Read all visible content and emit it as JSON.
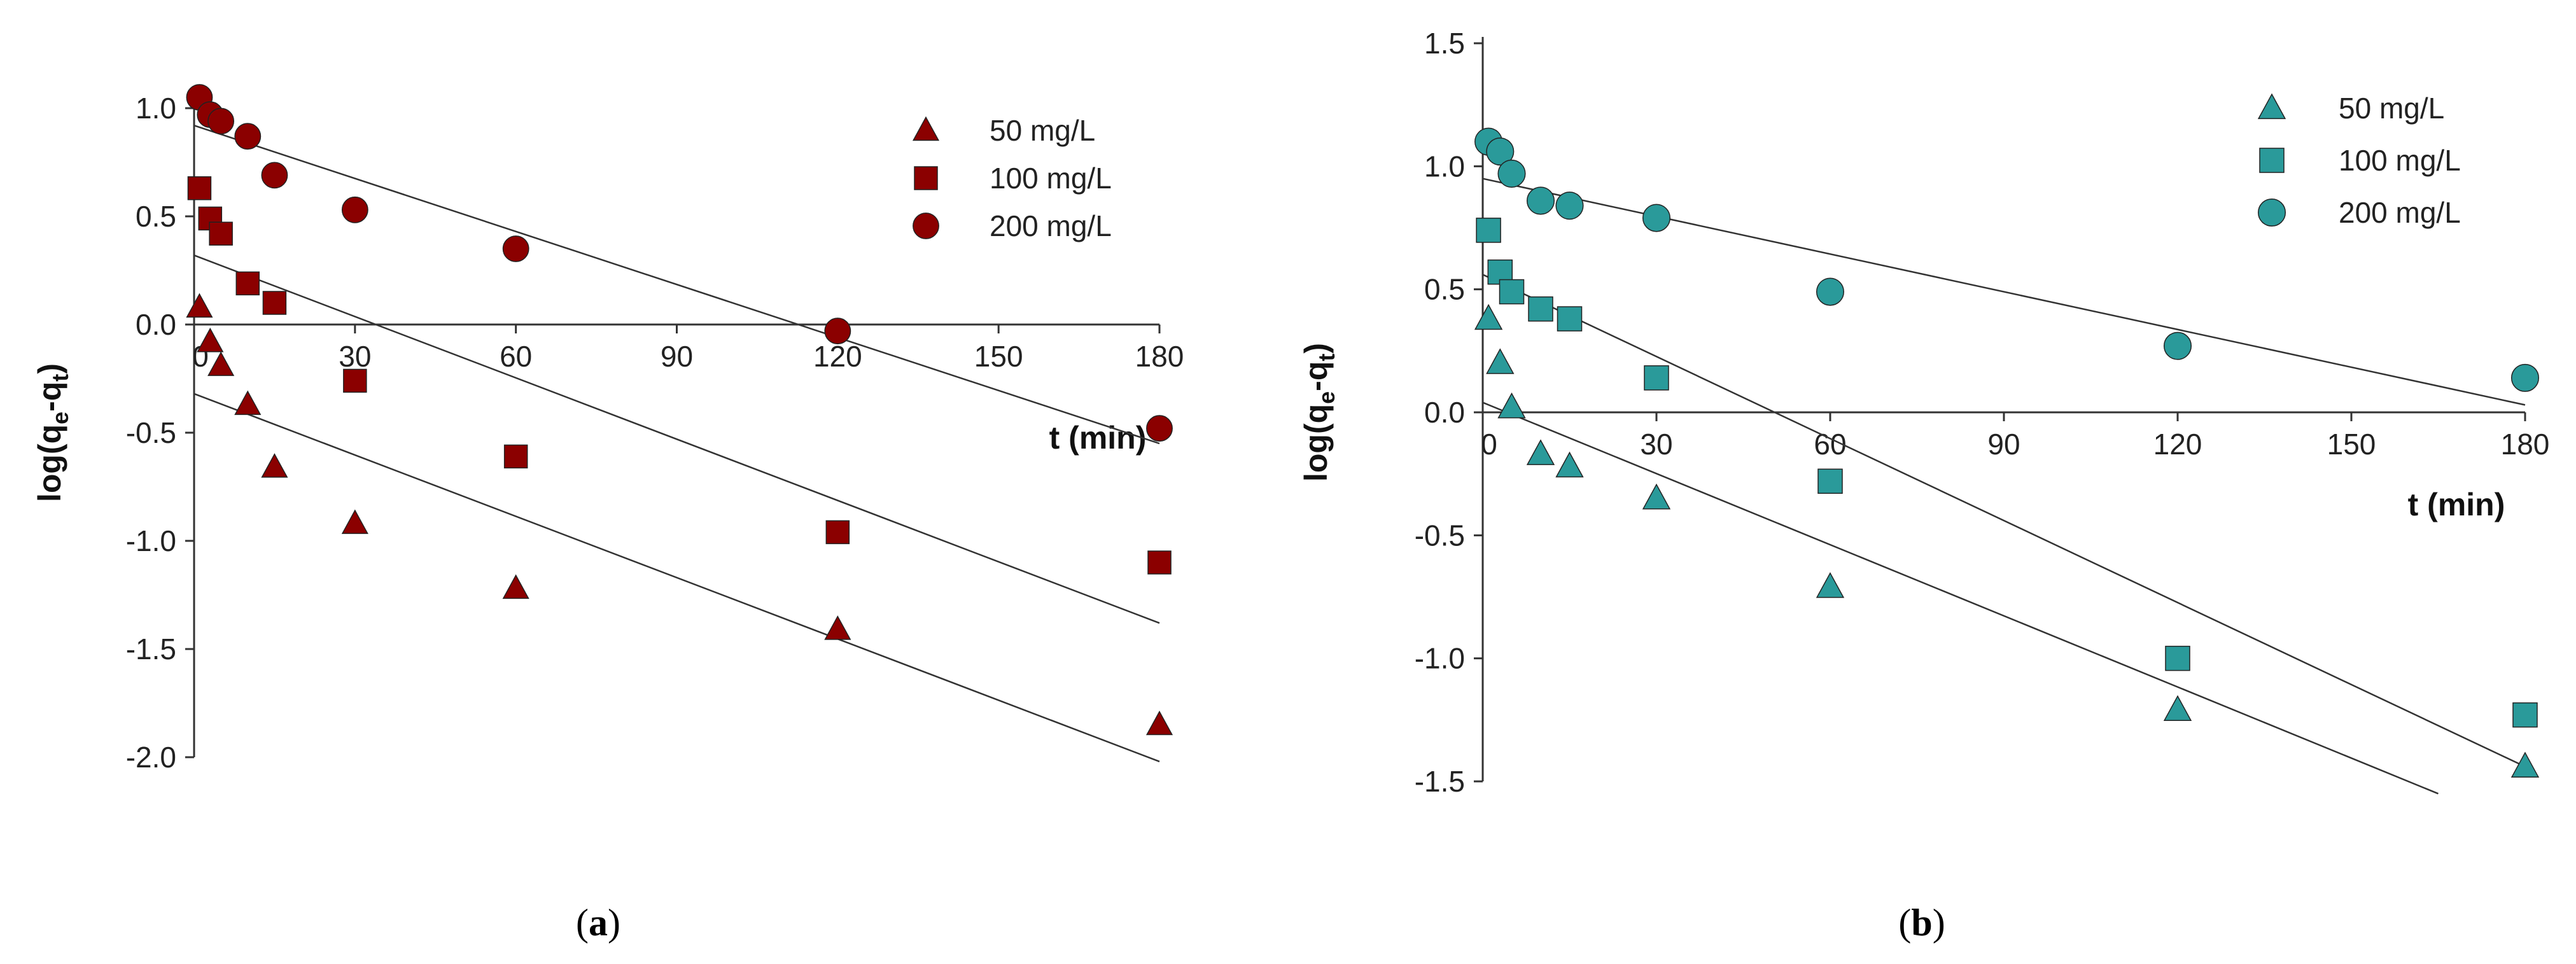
{
  "chart_data": [
    {
      "type": "scatter",
      "panel": "a",
      "caption": "(a)",
      "caption_letter": "a",
      "xlabel": "t (min)",
      "ylabel_parts": [
        "log(q",
        "e",
        "-q",
        "t",
        ")"
      ],
      "xlim": [
        0,
        180
      ],
      "ylim": [
        -2.0,
        1.0
      ],
      "xticks": [
        0,
        30,
        60,
        90,
        120,
        150,
        180
      ],
      "yticks": [
        -2.0,
        -1.5,
        -1.0,
        -0.5,
        0.0,
        0.5,
        1.0
      ],
      "ytick_labels": [
        "-2.0",
        "-1.5",
        "-1.0",
        "-0.5",
        "0.0",
        "0.5",
        "1.0"
      ],
      "marker_color": "#8b0000",
      "legend_position": "top-right",
      "series": [
        {
          "name": "50 mg/L",
          "marker": "triangle",
          "x": [
            1,
            3,
            5,
            10,
            15,
            30,
            60,
            120,
            180
          ],
          "y": [
            0.08,
            -0.08,
            -0.19,
            -0.37,
            -0.66,
            -0.92,
            -1.22,
            -1.41,
            -1.85
          ],
          "fit": {
            "x": [
              0,
              180
            ],
            "y": [
              -0.32,
              -2.02
            ]
          }
        },
        {
          "name": "100 mg/L",
          "marker": "square",
          "x": [
            1,
            3,
            5,
            10,
            15,
            30,
            60,
            120,
            180
          ],
          "y": [
            0.63,
            0.49,
            0.42,
            0.19,
            0.1,
            -0.26,
            -0.61,
            -0.96,
            -1.1
          ],
          "fit": {
            "x": [
              0,
              180
            ],
            "y": [
              0.32,
              -1.38
            ]
          }
        },
        {
          "name": "200 mg/L",
          "marker": "circle",
          "x": [
            1,
            3,
            5,
            10,
            15,
            30,
            60,
            120,
            180
          ],
          "y": [
            1.05,
            0.97,
            0.94,
            0.87,
            0.69,
            0.53,
            0.35,
            -0.03,
            -0.48
          ],
          "fit": {
            "x": [
              0,
              180
            ],
            "y": [
              0.92,
              -0.55
            ]
          }
        }
      ]
    },
    {
      "type": "scatter",
      "panel": "b",
      "caption": "(b)",
      "caption_letter": "b",
      "xlabel": "t (min)",
      "ylabel_parts": [
        "log(q",
        "e",
        "-q",
        "t",
        ")"
      ],
      "xlim": [
        0,
        180
      ],
      "ylim": [
        -1.5,
        1.5
      ],
      "xticks": [
        0,
        30,
        60,
        90,
        120,
        150,
        180
      ],
      "yticks": [
        -1.5,
        -1.0,
        -0.5,
        0.0,
        0.5,
        1.0,
        1.5
      ],
      "ytick_labels": [
        "-1.5",
        "-1.0",
        "-0.5",
        "0.0",
        "0.5",
        "1.0",
        "1.5"
      ],
      "marker_color": "#2a9a9a",
      "legend_position": "top-right",
      "series": [
        {
          "name": "50 mg/L",
          "marker": "triangle",
          "x": [
            1,
            3,
            5,
            10,
            15,
            30,
            60,
            120,
            180
          ],
          "y": [
            0.38,
            0.2,
            0.02,
            -0.17,
            -0.22,
            -0.35,
            -0.71,
            -1.21,
            -1.44
          ],
          "fit": {
            "x": [
              0,
              165
            ],
            "y": [
              0.04,
              -1.55
            ]
          }
        },
        {
          "name": "100 mg/L",
          "marker": "square",
          "x": [
            1,
            3,
            5,
            10,
            15,
            30,
            60,
            120,
            180
          ],
          "y": [
            0.74,
            0.57,
            0.49,
            0.42,
            0.38,
            0.14,
            -0.28,
            -1.0,
            -1.23
          ],
          "fit": {
            "x": [
              0,
              180
            ],
            "y": [
              0.56,
              -1.44
            ]
          }
        },
        {
          "name": "200 mg/L",
          "marker": "circle",
          "x": [
            1,
            3,
            5,
            10,
            15,
            30,
            60,
            120,
            180
          ],
          "y": [
            1.1,
            1.06,
            0.97,
            0.86,
            0.84,
            0.79,
            0.49,
            0.27,
            0.14
          ],
          "fit": {
            "x": [
              0,
              180
            ],
            "y": [
              0.95,
              0.03
            ]
          }
        }
      ]
    }
  ]
}
